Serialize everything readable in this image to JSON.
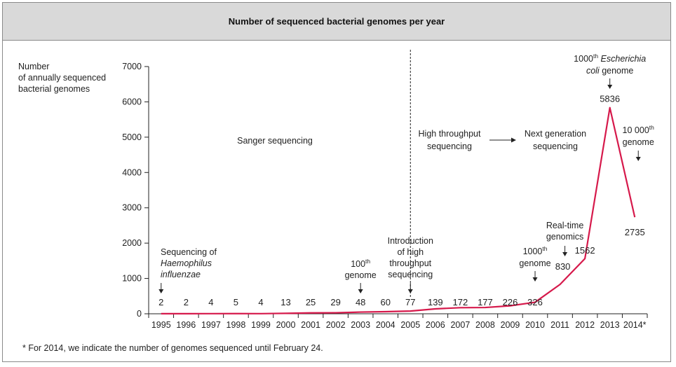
{
  "chart_data": {
    "type": "line",
    "title": "Number of sequenced bacterial genomes per year",
    "ylabel_lines": [
      "Number",
      "of annually sequenced",
      "bacterial genomes"
    ],
    "xlabel": "",
    "ylim": [
      0,
      7000
    ],
    "yticks": [
      0,
      1000,
      2000,
      3000,
      4000,
      5000,
      6000,
      7000
    ],
    "categories": [
      "1995",
      "1996",
      "1997",
      "1998",
      "1999",
      "2000",
      "2001",
      "2002",
      "2003",
      "2004",
      "2005",
      "2006",
      "2007",
      "2008",
      "2009",
      "2010",
      "2011",
      "2012",
      "2013",
      "2014*"
    ],
    "values": [
      2,
      2,
      4,
      5,
      4,
      13,
      25,
      29,
      48,
      60,
      77,
      139,
      172,
      177,
      226,
      326,
      830,
      1562,
      5836,
      2735
    ],
    "series_color": "#d6194b",
    "grid": false,
    "era_divider_category": "2005",
    "eras": [
      "Sanger sequencing",
      "High throughput sequencing",
      "Next generation sequencing"
    ],
    "annotations": [
      {
        "name": "haemophilus",
        "year": "1995",
        "lines": [
          "Sequencing of",
          "Haemophilus",
          "influenzae"
        ],
        "italic_lines": [
          1,
          2
        ]
      },
      {
        "name": "genome-100th",
        "year": "2003",
        "base": "100",
        "sup": "th",
        "rest": "genome"
      },
      {
        "name": "intro-high-throughput",
        "year": "2005",
        "lines": [
          "Introduction",
          "of high",
          "throughput",
          "sequencing"
        ]
      },
      {
        "name": "genome-1000th",
        "year": "2010",
        "base": "1000",
        "sup": "th",
        "rest": "genome"
      },
      {
        "name": "real-time",
        "year": "2011",
        "lines": [
          "Real-time",
          "genomics"
        ]
      },
      {
        "name": "ecoli-1000th",
        "year": "2013",
        "base": "1000",
        "sup": "th",
        "rest1": "Escherichia",
        "rest2": "coli",
        "rest3": "genome"
      },
      {
        "name": "genome-10000th",
        "year": "2014*",
        "base": "10 000",
        "sup": "th",
        "rest": "genome"
      }
    ]
  },
  "footnote": "* For 2014, we indicate the number of genomes sequenced until February 24."
}
